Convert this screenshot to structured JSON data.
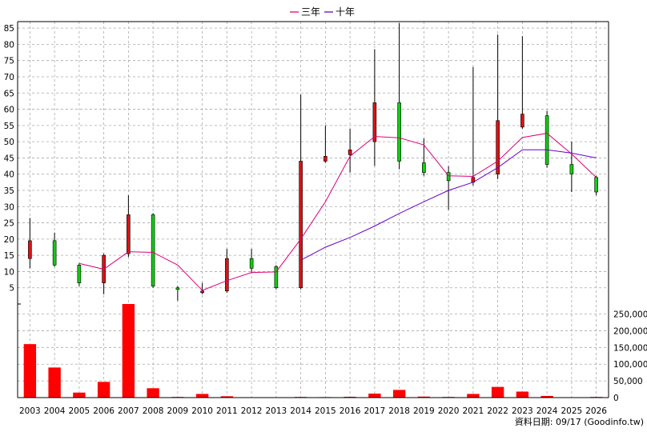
{
  "chart_data": {
    "type": "candlestick",
    "legend": [
      {
        "label": "三年",
        "color": "#e0007a"
      },
      {
        "label": "十年",
        "color": "#6a00c8"
      }
    ],
    "years": [
      "2003",
      "2004",
      "2005",
      "2006",
      "2007",
      "2008",
      "2009",
      "2010",
      "2011",
      "2012",
      "2013",
      "2014",
      "2015",
      "2016",
      "2017",
      "2018",
      "2019",
      "2020",
      "2021",
      "2022",
      "2023",
      "2024",
      "2025",
      "2026"
    ],
    "price_axis": {
      "min": 0,
      "max": 87,
      "ticks": [
        5,
        10,
        15,
        20,
        25,
        30,
        35,
        40,
        45,
        50,
        55,
        60,
        65,
        70,
        75,
        80,
        85
      ]
    },
    "volume_axis": {
      "min": 0,
      "max": 280000,
      "ticks": [
        0,
        50000,
        100000,
        150000,
        200000,
        250000
      ],
      "tick_labels": [
        "0",
        "50,000",
        "100,000",
        "150,000",
        "200,000",
        "250,000"
      ]
    },
    "candles": [
      {
        "year": "2003",
        "open": 14,
        "close": 19.5,
        "high": 26.5,
        "low": 11
      },
      {
        "year": "2004",
        "open": 19.5,
        "close": 12,
        "high": 22,
        "low": 11.5
      },
      {
        "year": "2005",
        "open": 12,
        "close": 6.5,
        "high": 12.5,
        "low": 5.5
      },
      {
        "year": "2006",
        "open": 6.5,
        "close": 15,
        "high": 15.5,
        "low": 3
      },
      {
        "year": "2007",
        "open": 15.5,
        "close": 27.5,
        "high": 33.5,
        "low": 14.5
      },
      {
        "year": "2008",
        "open": 27.5,
        "close": 5.5,
        "high": 28,
        "low": 5
      },
      {
        "year": "2009",
        "open": 5,
        "close": 4.5,
        "high": 5.5,
        "low": 1
      },
      {
        "year": "2010",
        "open": 3.5,
        "close": 4,
        "high": 6.5,
        "low": 3
      },
      {
        "year": "2011",
        "open": 4,
        "close": 14,
        "high": 17,
        "low": 3.5
      },
      {
        "year": "2012",
        "open": 14,
        "close": 11,
        "high": 17,
        "low": 9.5
      },
      {
        "year": "2013",
        "open": 11.5,
        "close": 5,
        "high": 12,
        "low": 4.5
      },
      {
        "year": "2014",
        "open": 5,
        "close": 44,
        "high": 64.5,
        "low": 4.5
      },
      {
        "year": "2015",
        "open": 44,
        "close": 45.5,
        "high": 55,
        "low": 43.5
      },
      {
        "year": "2016",
        "open": 46,
        "close": 47.5,
        "high": 54,
        "low": 40.5
      },
      {
        "year": "2017",
        "open": 50,
        "close": 62,
        "high": 78.5,
        "low": 42.5
      },
      {
        "year": "2018",
        "open": 62,
        "close": 44,
        "high": 86.5,
        "low": 41.5
      },
      {
        "year": "2019",
        "open": 43.5,
        "close": 40.5,
        "high": 51,
        "low": 39.5
      },
      {
        "year": "2020",
        "open": 40.5,
        "close": 38,
        "high": 42.5,
        "low": 29
      },
      {
        "year": "2021",
        "open": 37.5,
        "close": 39,
        "high": 73,
        "low": 36.5
      },
      {
        "year": "2022",
        "open": 40,
        "close": 56.5,
        "high": 83,
        "low": 38.5
      },
      {
        "year": "2023",
        "open": 54.5,
        "close": 58.5,
        "high": 82.5,
        "low": 54
      },
      {
        "year": "2024",
        "open": 58,
        "close": 43,
        "high": 59.5,
        "low": 42
      },
      {
        "year": "2025",
        "open": 43,
        "close": 40,
        "high": 50,
        "low": 34.5
      },
      {
        "year": "2026",
        "open": 39,
        "close": 34.5,
        "high": 39.5,
        "low": 33.5
      }
    ],
    "ma3": [
      null,
      null,
      12.5,
      10.7,
      16.1,
      15.9,
      12,
      4.2,
      7.2,
      9.7,
      9.9,
      20,
      31.5,
      45.5,
      51.6,
      51.2,
      49,
      39.5,
      39.3,
      44,
      51.3,
      52.6,
      46.2,
      39
    ],
    "ma10": [
      null,
      null,
      null,
      null,
      null,
      null,
      null,
      null,
      null,
      null,
      null,
      13.5,
      17.5,
      20.5,
      24,
      27.9,
      31.5,
      35,
      37.5,
      42,
      47.5,
      47.5,
      46.5,
      45
    ],
    "volume": [
      160000,
      90000,
      15000,
      47000,
      280000,
      28000,
      2000,
      11000,
      4000,
      1000,
      1000,
      2000,
      1500,
      2500,
      12000,
      23000,
      3000,
      2000,
      11000,
      32000,
      18000,
      5000,
      1000,
      2000
    ],
    "bar_color": "#ff0000",
    "up_color": "#dd1111",
    "down_color": "#11cc11",
    "source": "資料日期: 09/17  (Goodinfo.tw)"
  }
}
